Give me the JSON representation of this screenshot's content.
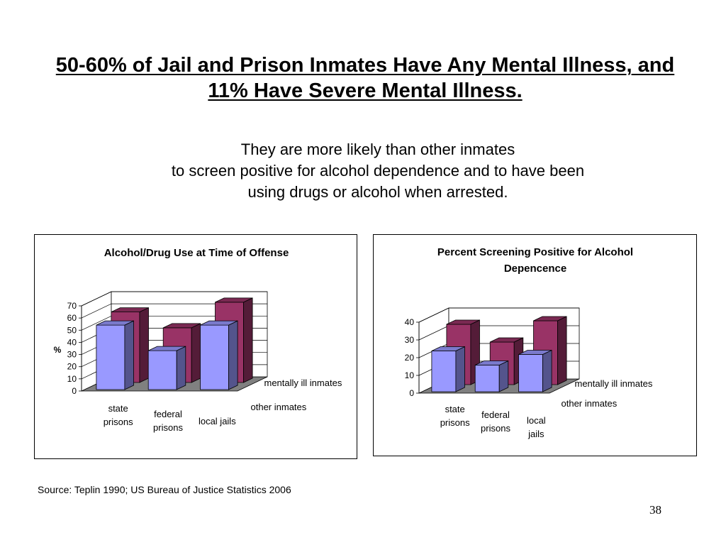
{
  "slide": {
    "title": "50-60% of Jail and Prison Inmates Have Any Mental Illness, and 11% Have Severe Mental Illness.",
    "subtitle_lines": [
      "They are more likely than other inmates",
      "to screen positive for alcohol dependence and to have been",
      "using drugs or alcohol when arrested."
    ],
    "source": "Source: Teplin 1990; US Bureau of Justice Statistics 2006",
    "page_number": "38"
  },
  "colors": {
    "other_inmates": "#9999FF",
    "mentally_ill_inmates": "#993366",
    "floor": "#808080",
    "wall": "#ffffff"
  },
  "chart_data": [
    {
      "type": "bar",
      "style": "3d-column",
      "title": "Alcohol/Drug Use at Time of Offense",
      "ylabel": "%",
      "ylim": [
        0,
        70
      ],
      "yticks": [
        "0",
        "10",
        "20",
        "30",
        "40",
        "50",
        "60",
        "70"
      ],
      "categories": [
        "state prisons",
        "federal prisons",
        "local jails"
      ],
      "category_lines": [
        [
          "state",
          "prisons"
        ],
        [
          "federal",
          "prisons"
        ],
        [
          "local jails"
        ]
      ],
      "series": [
        {
          "name": "other inmates",
          "values": [
            53,
            32,
            53
          ]
        },
        {
          "name": "mentally ill inmates",
          "values": [
            58,
            45,
            66
          ]
        }
      ],
      "grid": true
    },
    {
      "type": "bar",
      "style": "3d-column",
      "title": "Percent Screening Positive for Alcohol Depencence",
      "title_lines": [
        "Percent Screening Positive for Alcohol",
        "Depencence"
      ],
      "ylabel": "",
      "ylim": [
        0,
        40
      ],
      "yticks": [
        "0",
        "10",
        "20",
        "30",
        "40"
      ],
      "categories": [
        "state prisons",
        "federal prisons",
        "local jails"
      ],
      "category_lines": [
        [
          "state",
          "prisons"
        ],
        [
          "federal",
          "prisons"
        ],
        [
          "local",
          "jails"
        ]
      ],
      "series": [
        {
          "name": "other inmates",
          "values": [
            23,
            15,
            21
          ]
        },
        {
          "name": "mentally ill inmates",
          "values": [
            34,
            24,
            36
          ]
        }
      ],
      "grid": true
    }
  ]
}
